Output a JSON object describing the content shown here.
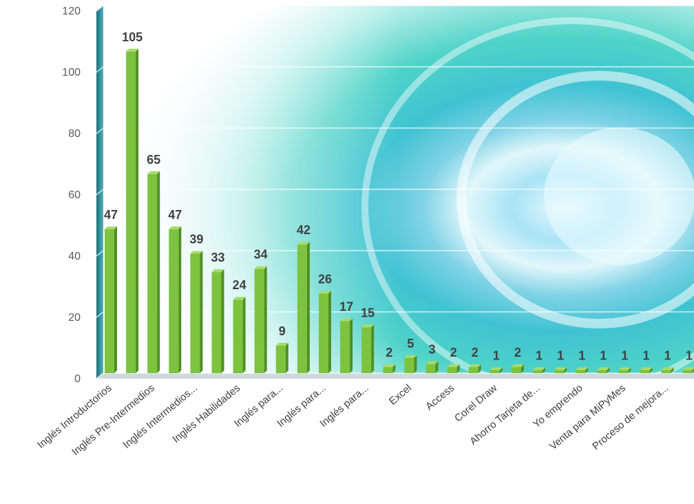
{
  "chart_data": {
    "type": "bar",
    "ylim": [
      0,
      120
    ],
    "yticks": [
      0,
      20,
      40,
      60,
      80,
      100,
      120
    ],
    "grid": true,
    "legend": "none",
    "bar_color": "#7dc33f",
    "categories": [
      "Inglés Introductorios",
      "",
      "Inglés Pre-Intermedios",
      "",
      "Inglés Intermedios...",
      "",
      "Inglés Habilidades",
      "",
      "Inglés para...",
      "",
      "Inglés para...",
      "",
      "Inglés para...",
      "",
      "Excel",
      "",
      "Access",
      "",
      "Corel Draw",
      "",
      "Ahorro Tarjeta de...",
      "",
      "Yo emprendo",
      "",
      "Venta para MiPyMes",
      "",
      "Proceso de mejora...",
      ""
    ],
    "values": [
      47,
      105,
      65,
      47,
      39,
      33,
      24,
      34,
      9,
      42,
      26,
      17,
      15,
      2,
      5,
      3,
      2,
      2,
      1,
      2,
      1,
      1,
      1,
      1,
      1,
      1,
      1,
      1
    ]
  }
}
